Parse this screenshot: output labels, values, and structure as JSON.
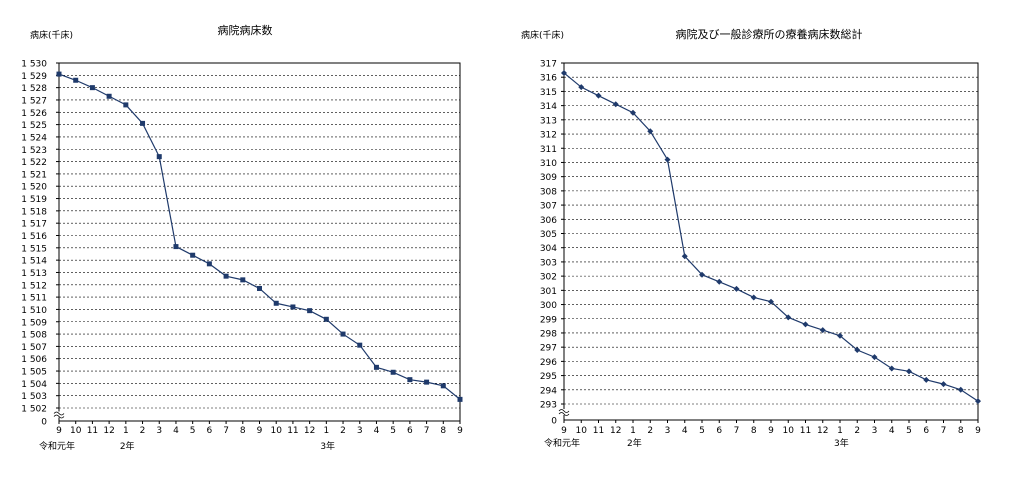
{
  "chart_data": [
    {
      "type": "line",
      "title": "病院病床数",
      "ylabel": "病床(千床)",
      "xlabel": "",
      "ylim": [
        1502,
        1530
      ],
      "yticks": [
        "1 530",
        "1 529",
        "1 528",
        "1 527",
        "1 526",
        "1 525",
        "1 524",
        "1 523",
        "1 522",
        "1 521",
        "1 520",
        "1 519",
        "1 518",
        "1 517",
        "1 516",
        "1 515",
        "1 514",
        "1 513",
        "1 512",
        "1 511",
        "1 510",
        "1 509",
        "1 508",
        "1 507",
        "1 506",
        "1 505",
        "1 504",
        "1 503",
        "1 502"
      ],
      "zero_label": "0",
      "axis_break": true,
      "grid": true,
      "categories": [
        "9",
        "10",
        "11",
        "12",
        "1",
        "2",
        "3",
        "4",
        "5",
        "6",
        "7",
        "8",
        "9",
        "10",
        "11",
        "12",
        "1",
        "2",
        "3",
        "4",
        "5",
        "6",
        "7",
        "8",
        "9"
      ],
      "year_labels": [
        {
          "index": 0,
          "text": "令和元年"
        },
        {
          "index": 4,
          "text": "2年"
        },
        {
          "index": 16,
          "text": "3年"
        }
      ],
      "marker": "square",
      "color": "#1f3a6b",
      "series": [
        {
          "values": [
            1529.1,
            1528.6,
            1528.0,
            1527.3,
            1526.6,
            1525.1,
            1522.4,
            1515.1,
            1514.4,
            1513.7,
            1512.7,
            1512.4,
            1511.7,
            1510.5,
            1510.2,
            1509.9,
            1509.2,
            1508.0,
            1507.1,
            1505.3,
            1504.9,
            1504.3,
            1504.1,
            1503.8,
            1502.7
          ]
        }
      ]
    },
    {
      "type": "line",
      "title": "病院及び一般診療所の療養病床数総計",
      "ylabel": "病床(千床)",
      "xlabel": "",
      "ylim": [
        293,
        317
      ],
      "yticks": [
        "317",
        "316",
        "315",
        "314",
        "313",
        "312",
        "311",
        "310",
        "309",
        "308",
        "307",
        "306",
        "305",
        "304",
        "303",
        "302",
        "301",
        "300",
        "299",
        "298",
        "297",
        "296",
        "295",
        "294",
        "293"
      ],
      "zero_label": "0",
      "axis_break": true,
      "grid": true,
      "categories": [
        "9",
        "10",
        "11",
        "12",
        "1",
        "2",
        "3",
        "4",
        "5",
        "6",
        "7",
        "8",
        "9",
        "10",
        "11",
        "12",
        "1",
        "2",
        "3",
        "4",
        "5",
        "6",
        "7",
        "8",
        "9"
      ],
      "year_labels": [
        {
          "index": 0,
          "text": "令和元年"
        },
        {
          "index": 4,
          "text": "2年"
        },
        {
          "index": 16,
          "text": "3年"
        }
      ],
      "marker": "diamond",
      "color": "#1f3a6b",
      "series": [
        {
          "values": [
            316.3,
            315.3,
            314.7,
            314.1,
            313.5,
            312.2,
            310.2,
            303.4,
            302.1,
            301.6,
            301.1,
            300.5,
            300.2,
            299.1,
            298.6,
            298.2,
            297.8,
            296.8,
            296.3,
            295.5,
            295.3,
            294.7,
            294.4,
            294.0,
            293.2
          ]
        }
      ]
    }
  ]
}
